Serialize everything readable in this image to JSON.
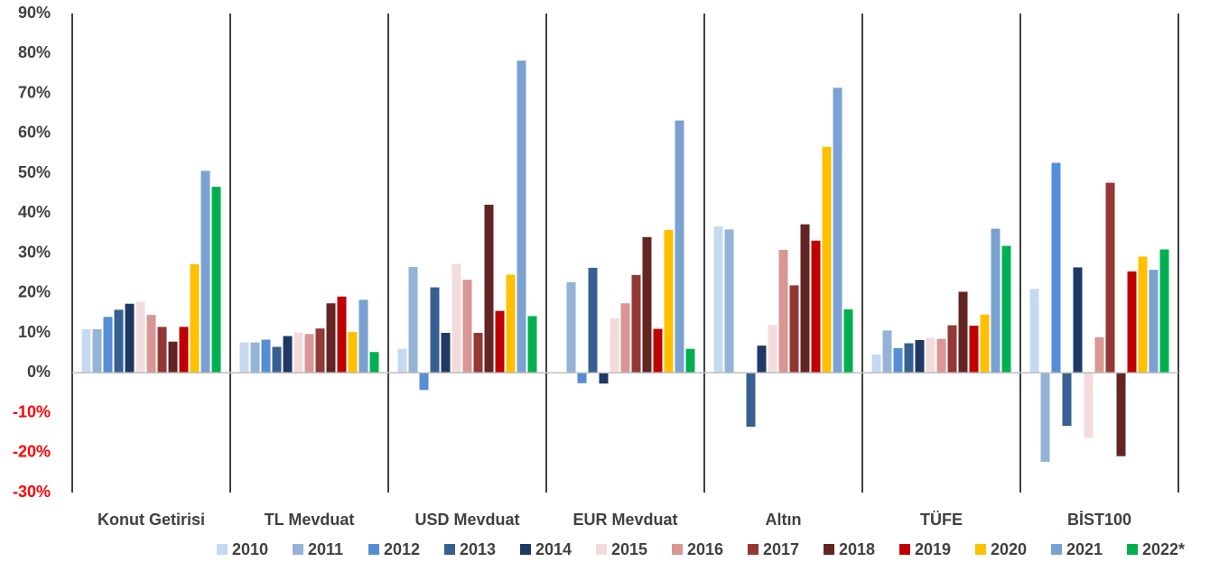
{
  "chart_data": {
    "type": "bar",
    "categories": [
      "Konut Getirisi",
      "TL Mevduat",
      "USD Mevduat",
      "EUR Mevduat",
      "Altın",
      "TÜFE",
      "BİST100"
    ],
    "ylim": [
      -30,
      90
    ],
    "yticks": [
      {
        "value": -30,
        "label": "-30%"
      },
      {
        "value": -20,
        "label": "-20%"
      },
      {
        "value": -10,
        "label": "-10%"
      },
      {
        "value": 0,
        "label": "0%"
      },
      {
        "value": 10,
        "label": "10%"
      },
      {
        "value": 20,
        "label": "20%"
      },
      {
        "value": 30,
        "label": "30%"
      },
      {
        "value": 40,
        "label": "40%"
      },
      {
        "value": 50,
        "label": "50%"
      },
      {
        "value": 60,
        "label": "60%"
      },
      {
        "value": 70,
        "label": "70%"
      },
      {
        "value": 80,
        "label": "80%"
      },
      {
        "value": 90,
        "label": "90%"
      }
    ],
    "series": [
      {
        "name": "2010",
        "color": "#c5d9f1",
        "values": [
          10.9,
          7.6,
          6,
          0,
          36.7,
          4.6,
          21
        ]
      },
      {
        "name": "2011",
        "color": "#95b3d7",
        "values": [
          10.9,
          7.6,
          26.5,
          22.7,
          35.9,
          10.6,
          -22.3
        ]
      },
      {
        "name": "2012",
        "color": "#558ed5",
        "values": [
          14,
          8.3,
          -4.3,
          -2.6,
          0,
          6.2,
          52.6
        ]
      },
      {
        "name": "2013",
        "color": "#376092",
        "values": [
          15.8,
          6.5,
          21.4,
          26.3,
          -13.5,
          7.4,
          -13.3
        ]
      },
      {
        "name": "2014",
        "color": "#1f3864",
        "values": [
          17.3,
          9.2,
          10,
          -2.7,
          6.8,
          8.2,
          26.4
        ]
      },
      {
        "name": "2015",
        "color": "#f2dcdb",
        "values": [
          17.8,
          10.1,
          27.3,
          13.7,
          12,
          8.8,
          -16.3
        ]
      },
      {
        "name": "2016",
        "color": "#d99694",
        "values": [
          14.5,
          9.7,
          23.3,
          17.4,
          30.8,
          8.5,
          8.9
        ]
      },
      {
        "name": "2017",
        "color": "#953735",
        "values": [
          11.5,
          11.1,
          10,
          24.5,
          21.9,
          11.9,
          47.6
        ]
      },
      {
        "name": "2018",
        "color": "#632523",
        "values": [
          7.8,
          17.4,
          42.1,
          34,
          37.2,
          20.3,
          -20.9
        ]
      },
      {
        "name": "2019",
        "color": "#c00000",
        "values": [
          11.5,
          19.1,
          15.5,
          11,
          33.1,
          11.8,
          25.4
        ]
      },
      {
        "name": "2020",
        "color": "#ffc000",
        "values": [
          27.2,
          10.2,
          24.6,
          35.8,
          56.6,
          14.6,
          29.1
        ]
      },
      {
        "name": "2021",
        "color": "#7aa1d2",
        "values": [
          50.6,
          18.3,
          78.2,
          63.2,
          71.4,
          36.1,
          25.8
        ]
      },
      {
        "name": "2022*",
        "color": "#00b050",
        "values": [
          46.6,
          5.2,
          14.2,
          6,
          15.9,
          31.8,
          30.9
        ]
      }
    ]
  }
}
